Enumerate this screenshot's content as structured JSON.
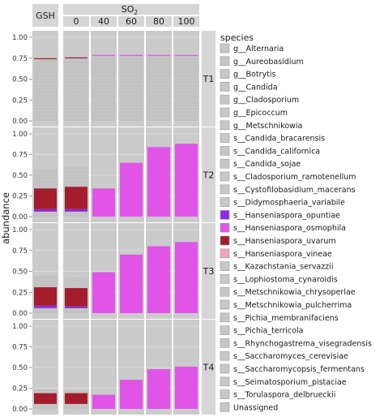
{
  "chart_data": {
    "type": "bar",
    "subtype": "stacked-bar-facet-grid",
    "ylabel": "abundance",
    "ylim": [
      0,
      1
    ],
    "yticks": [
      "0.00",
      "0.25",
      "0.50",
      "0.75",
      "1.00"
    ],
    "column_groups": [
      {
        "label": "GSH",
        "columns": [
          ""
        ]
      },
      {
        "label": "SO2",
        "label_main": "SO",
        "label_sub": "2",
        "columns": [
          "0",
          "40",
          "60",
          "80",
          "100"
        ]
      }
    ],
    "rows": [
      "T1",
      "T2",
      "T3",
      "T4"
    ],
    "legend_title": "species",
    "legend": [
      {
        "name": "g__Alternaria",
        "color": "#c7c7c7"
      },
      {
        "name": "g__Aureobasidium",
        "color": "#c7c7c7"
      },
      {
        "name": "g__Botrytis",
        "color": "#c7c7c7"
      },
      {
        "name": "g__Candida",
        "color": "#c7c7c7"
      },
      {
        "name": "g__Cladosporium",
        "color": "#c7c7c7"
      },
      {
        "name": "g__Epicoccum",
        "color": "#c7c7c7"
      },
      {
        "name": "g__Metschnikowia",
        "color": "#c7c7c7"
      },
      {
        "name": "s__Candida_bracarensis",
        "color": "#c7c7c7"
      },
      {
        "name": "s__Candida_californica",
        "color": "#c7c7c7"
      },
      {
        "name": "s__Candida_sojae",
        "color": "#c7c7c7"
      },
      {
        "name": "s__Cladosporium_ramotenellum",
        "color": "#c7c7c7"
      },
      {
        "name": "s__Cystofilobasidium_macerans",
        "color": "#c7c7c7"
      },
      {
        "name": "s__Didymosphaeria_variabile",
        "color": "#c7c7c7"
      },
      {
        "name": "s__Hanseniaspora_opuntiae",
        "color": "#8b2be2"
      },
      {
        "name": "s__Hanseniaspora_osmophila",
        "color": "#e055e8"
      },
      {
        "name": "s__Hanseniaspora_uvarum",
        "color": "#a31d2c"
      },
      {
        "name": "s__Hanseniaspora_vineae",
        "color": "#f2a3bd"
      },
      {
        "name": "s__Kazachstania_servazzii",
        "color": "#c7c7c7"
      },
      {
        "name": "s__Lophiostoma_cynaroidis",
        "color": "#c7c7c7"
      },
      {
        "name": "s__Metschnikowia_chrysoperlae",
        "color": "#c7c7c7"
      },
      {
        "name": "s__Metschnikowia_pulcherrima",
        "color": "#c7c7c7"
      },
      {
        "name": "s__Pichia_membranifaciens",
        "color": "#c7c7c7"
      },
      {
        "name": "s__Pichia_terricola",
        "color": "#c7c7c7"
      },
      {
        "name": "s__Rhynchogastrema_visegradensis",
        "color": "#c7c7c7"
      },
      {
        "name": "s__Saccharomyces_cerevisiae",
        "color": "#c7c7c7"
      },
      {
        "name": "s__Saccharomycopsis_fermentans",
        "color": "#c7c7c7"
      },
      {
        "name": "s__Seimatosporium_pistaciae",
        "color": "#c7c7c7"
      },
      {
        "name": "s__Torulaspora_delbrueckii",
        "color": "#c7c7c7"
      },
      {
        "name": "Unassigned",
        "color": "#c7c7c7"
      }
    ],
    "bars": [
      [
        {
          "total": 0.75,
          "segments": [
            {
              "species": "s__Hanseniaspora_uvarum",
              "value": 0.01
            }
          ]
        },
        {
          "total": 0.76,
          "segments": [
            {
              "species": "s__Hanseniaspora_uvarum",
              "value": 0.01
            }
          ]
        },
        {
          "total": 0.79,
          "segments": [
            {
              "species": "s__Hanseniaspora_osmophila",
              "value": 0.01
            }
          ]
        },
        {
          "total": 0.79,
          "segments": [
            {
              "species": "s__Hanseniaspora_osmophila",
              "value": 0.01
            }
          ]
        },
        {
          "total": 0.79,
          "segments": [
            {
              "species": "s__Hanseniaspora_osmophila",
              "value": 0.01
            }
          ]
        },
        {
          "total": 0.79,
          "segments": [
            {
              "species": "s__Hanseniaspora_osmophila",
              "value": 0.01
            }
          ]
        }
      ],
      [
        {
          "total": 0.57,
          "segments": [
            {
              "species": "s__Hanseniaspora_opuntiae",
              "value": 0.03
            },
            {
              "species": "s__Hanseniaspora_uvarum",
              "value": 0.25
            }
          ]
        },
        {
          "total": 0.59,
          "segments": [
            {
              "species": "s__Hanseniaspora_opuntiae",
              "value": 0.03
            },
            {
              "species": "s__Hanseniaspora_uvarum",
              "value": 0.27
            }
          ]
        },
        {
          "total": 0.34,
          "segments": [
            {
              "species": "s__Hanseniaspora_osmophila",
              "value": 0.34
            }
          ]
        },
        {
          "total": 0.65,
          "segments": [
            {
              "species": "s__Hanseniaspora_osmophila",
              "value": 0.65
            }
          ]
        },
        {
          "total": 0.84,
          "segments": [
            {
              "species": "s__Hanseniaspora_osmophila",
              "value": 0.84
            }
          ]
        },
        {
          "total": 0.88,
          "segments": [
            {
              "species": "s__Hanseniaspora_osmophila",
              "value": 0.88
            }
          ]
        }
      ],
      [
        {
          "total": 0.45,
          "segments": [
            {
              "species": "s__Hanseniaspora_opuntiae",
              "value": 0.03
            },
            {
              "species": "s__Hanseniaspora_uvarum",
              "value": 0.22
            }
          ]
        },
        {
          "total": 0.42,
          "segments": [
            {
              "species": "s__Hanseniaspora_opuntiae",
              "value": 0.02
            },
            {
              "species": "s__Hanseniaspora_uvarum",
              "value": 0.22
            }
          ]
        },
        {
          "total": 0.49,
          "segments": [
            {
              "species": "s__Hanseniaspora_osmophila",
              "value": 0.49
            }
          ]
        },
        {
          "total": 0.7,
          "segments": [
            {
              "species": "s__Hanseniaspora_osmophila",
              "value": 0.7
            }
          ]
        },
        {
          "total": 0.8,
          "segments": [
            {
              "species": "s__Hanseniaspora_osmophila",
              "value": 0.8
            }
          ]
        },
        {
          "total": 0.85,
          "segments": [
            {
              "species": "s__Hanseniaspora_osmophila",
              "value": 0.85
            }
          ]
        }
      ],
      [
        {
          "total": 0.23,
          "segments": [
            {
              "species": "s__Hanseniaspora_uvarum",
              "value": 0.13
            }
          ]
        },
        {
          "total": 0.21,
          "segments": [
            {
              "species": "s__Hanseniaspora_uvarum",
              "value": 0.13
            }
          ]
        },
        {
          "total": 0.17,
          "segments": [
            {
              "species": "s__Hanseniaspora_osmophila",
              "value": 0.17
            }
          ]
        },
        {
          "total": 0.35,
          "segments": [
            {
              "species": "s__Hanseniaspora_osmophila",
              "value": 0.35
            }
          ]
        },
        {
          "total": 0.48,
          "segments": [
            {
              "species": "s__Hanseniaspora_osmophila",
              "value": 0.48
            }
          ]
        },
        {
          "total": 0.51,
          "segments": [
            {
              "species": "s__Hanseniaspora_osmophila",
              "value": 0.51
            }
          ]
        }
      ]
    ]
  }
}
